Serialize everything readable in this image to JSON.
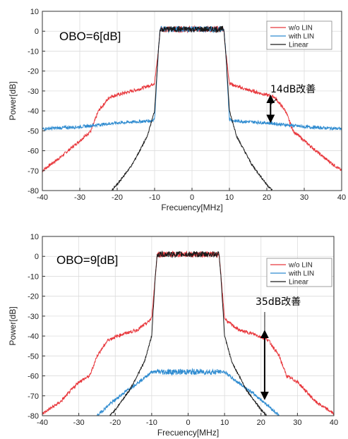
{
  "chart_data": [
    {
      "type": "line",
      "title": "OBO=6[dB]",
      "xlabel": "Frecuency[MHz]",
      "ylabel": "Power[dB]",
      "xlim": [
        -40,
        40
      ],
      "ylim": [
        -80,
        10
      ],
      "xticks": [
        -40,
        -30,
        -20,
        -10,
        0,
        10,
        20,
        30,
        40
      ],
      "yticks": [
        10,
        0,
        -10,
        -20,
        -30,
        -40,
        -50,
        -60,
        -70,
        -80
      ],
      "grid": true,
      "legend_position": "top-right",
      "series": [
        {
          "name": "w/o LIN",
          "color": "#e8373c",
          "x": [
            -40,
            -35,
            -30,
            -27,
            -25,
            -22,
            -18,
            -14,
            -11,
            -10,
            -9,
            -8.5,
            8.5,
            9,
            10,
            11,
            14,
            18,
            22,
            25,
            27,
            30,
            35,
            40
          ],
          "y": [
            -70,
            -63,
            -55,
            -50,
            -40,
            -33,
            -31,
            -29,
            -27,
            -26,
            -10,
            1,
            1,
            -10,
            -26,
            -27,
            -29,
            -31,
            -33,
            -40,
            -50,
            -55,
            -63,
            -70
          ]
        },
        {
          "name": "with LIN",
          "color": "#2e8bd0",
          "x": [
            -40,
            -30,
            -20,
            -11,
            -10,
            -9,
            -8.5,
            8.5,
            9,
            10,
            11,
            20,
            30,
            40
          ],
          "y": [
            -49,
            -48,
            -46,
            -45,
            -44,
            -10,
            1,
            1,
            -10,
            -44,
            -45,
            -46,
            -48,
            -49
          ]
        },
        {
          "name": "Linear",
          "color": "#1a1a1a",
          "x": [
            -21.5,
            -20,
            -18,
            -16,
            -14,
            -12,
            -10,
            -9,
            -8.5,
            8.5,
            9,
            10,
            12,
            14,
            16,
            18,
            20,
            21.5
          ],
          "y": [
            -80,
            -77,
            -72,
            -67,
            -60,
            -53,
            -40,
            -10,
            1,
            1,
            -10,
            -40,
            -53,
            -60,
            -67,
            -72,
            -77,
            -80
          ]
        }
      ],
      "annotation": {
        "text": "14dB改善",
        "x": 21,
        "y_from": -32,
        "y_to": -46
      }
    },
    {
      "type": "line",
      "title": "OBO=9[dB]",
      "xlabel": "Frecuency[MHz]",
      "ylabel": "Power[dB]",
      "xlim": [
        -40,
        40
      ],
      "ylim": [
        -80,
        10
      ],
      "xticks": [
        -40,
        -30,
        -20,
        -10,
        0,
        10,
        20,
        30,
        40
      ],
      "yticks": [
        10,
        0,
        -10,
        -20,
        -30,
        -40,
        -50,
        -60,
        -70,
        -80
      ],
      "grid": true,
      "legend_position": "top-right",
      "series": [
        {
          "name": "w/o LIN",
          "color": "#e8373c",
          "x": [
            -40,
            -35,
            -30,
            -27,
            -25,
            -22,
            -18,
            -14,
            -11,
            -10,
            -9,
            -8.5,
            8.5,
            9,
            10,
            11,
            14,
            18,
            22,
            25,
            27,
            30,
            35,
            40
          ],
          "y": [
            -79,
            -73,
            -63,
            -60,
            -50,
            -42,
            -39,
            -37,
            -33,
            -31,
            -10,
            1,
            1,
            -10,
            -31,
            -33,
            -37,
            -39,
            -42,
            -50,
            -60,
            -63,
            -73,
            -79
          ]
        },
        {
          "name": "with LIN",
          "color": "#2e8bd0",
          "x": [
            -25,
            -22,
            -18,
            -15,
            -12,
            -10,
            10,
            12,
            15,
            18,
            22,
            25
          ],
          "y": [
            -80,
            -75,
            -69,
            -65,
            -61,
            -58,
            -58,
            -61,
            -65,
            -69,
            -75,
            -80
          ]
        },
        {
          "name": "Linear",
          "color": "#1a1a1a",
          "x": [
            -21.5,
            -20,
            -18,
            -16,
            -14,
            -12,
            -10,
            -9,
            -8.5,
            8.5,
            9,
            10,
            12,
            14,
            16,
            18,
            20,
            21.5
          ],
          "y": [
            -80,
            -77,
            -72,
            -67,
            -60,
            -53,
            -40,
            -10,
            1,
            1,
            -10,
            -40,
            -53,
            -60,
            -67,
            -72,
            -77,
            -80
          ]
        }
      ],
      "annotation": {
        "text": "35dB改善",
        "x": 21,
        "y_from": -37,
        "y_to": -72
      }
    }
  ]
}
